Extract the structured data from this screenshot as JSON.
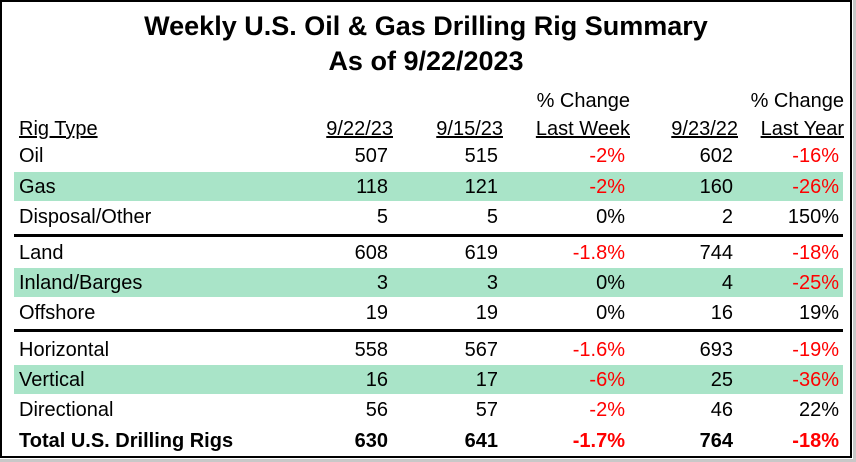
{
  "title": "Weekly U.S. Oil & Gas Drilling Rig Summary",
  "subtitle": "As of 9/22/2023",
  "headers": {
    "rig_type": "Rig Type",
    "col1": "9/22/23",
    "col2": "9/15/23",
    "col3_line1": "% Change",
    "col3_line2": "Last Week",
    "col4": "9/23/22",
    "col5_line1": "% Change",
    "col5_line2": "Last Year"
  },
  "rows": [
    {
      "label": "Oil",
      "c1": "507",
      "c2": "515",
      "c3": "-2%",
      "c4": "602",
      "c5": "-16%"
    },
    {
      "label": "Gas",
      "c1": "118",
      "c2": "121",
      "c3": "-2%",
      "c4": "160",
      "c5": "-26%"
    },
    {
      "label": "Disposal/Other",
      "c1": "5",
      "c2": "5",
      "c3": "0%",
      "c4": "2",
      "c5": "150%"
    },
    {
      "label": "Land",
      "c1": "608",
      "c2": "619",
      "c3": "-1.8%",
      "c4": "744",
      "c5": "-18%"
    },
    {
      "label": "Inland/Barges",
      "c1": "3",
      "c2": "3",
      "c3": "0%",
      "c4": "4",
      "c5": "-25%"
    },
    {
      "label": "Offshore",
      "c1": "19",
      "c2": "19",
      "c3": "0%",
      "c4": "16",
      "c5": "19%"
    },
    {
      "label": "Horizontal",
      "c1": "558",
      "c2": "567",
      "c3": "-1.6%",
      "c4": "693",
      "c5": "-19%"
    },
    {
      "label": "Vertical",
      "c1": "16",
      "c2": "17",
      "c3": "-6%",
      "c4": "25",
      "c5": "-36%"
    },
    {
      "label": "Directional",
      "c1": "56",
      "c2": "57",
      "c3": "-2%",
      "c4": "46",
      "c5": "22%"
    },
    {
      "label": "Total U.S. Drilling Rigs",
      "c1": "630",
      "c2": "641",
      "c3": "-1.7%",
      "c4": "764",
      "c5": "-18%"
    }
  ],
  "colors": {
    "shade": "#a9e4c8",
    "negative": "#ff0000"
  }
}
